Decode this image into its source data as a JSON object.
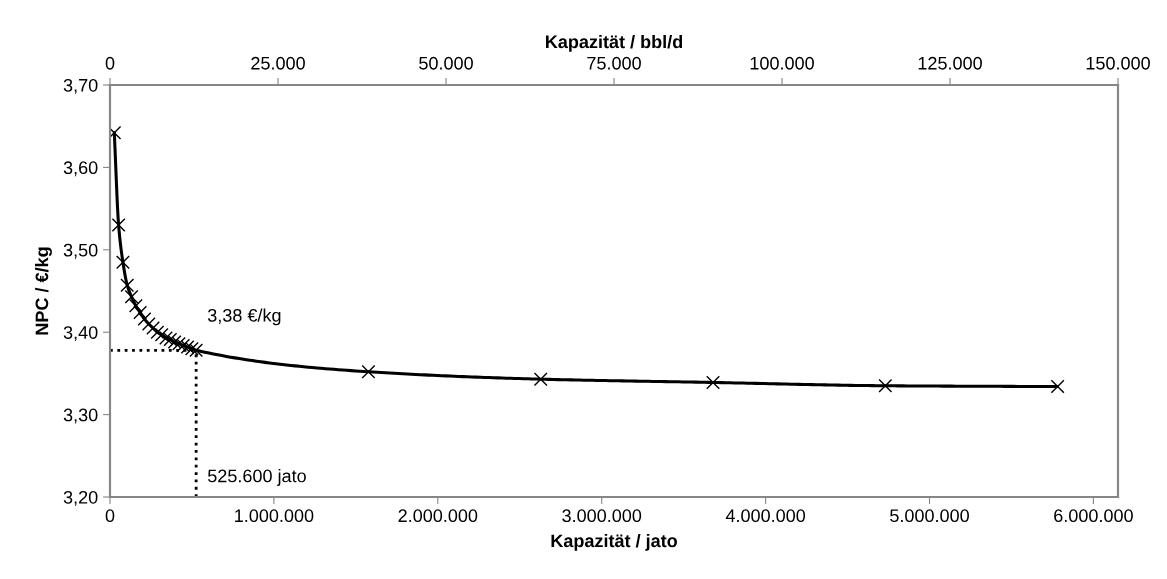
{
  "chart_data": {
    "type": "line",
    "xlabel": "Kapazität / jato",
    "ylabel": "NPC / €/kg",
    "x2label": "Kapazität / bbl/d",
    "x": [
      26280,
      52560,
      78840,
      105120,
      131400,
      157680,
      183960,
      210240,
      236520,
      262800,
      289080,
      315360,
      341640,
      367920,
      394200,
      420480,
      446760,
      473040,
      499320,
      525600,
      1576800,
      2628000,
      3679200,
      4730400,
      5781600
    ],
    "series": [
      {
        "color": "#000000",
        "values": [
          3.642,
          3.53,
          3.485,
          3.457,
          3.443,
          3.432,
          3.424,
          3.416,
          3.41,
          3.405,
          3.4,
          3.397,
          3.393,
          3.391,
          3.388,
          3.386,
          3.384,
          3.382,
          3.38,
          3.378,
          3.352,
          3.343,
          3.339,
          3.335,
          3.334
        ]
      }
    ],
    "marker": "cross",
    "line_style": "solid",
    "grid": false,
    "legend": false,
    "xlim": [
      0,
      6150000
    ],
    "xticks": [
      {
        "value": 0,
        "label": "0"
      },
      {
        "value": 1000000,
        "label": "1.000.000"
      },
      {
        "value": 2000000,
        "label": "2.000.000"
      },
      {
        "value": 3000000,
        "label": "3.000.000"
      },
      {
        "value": 4000000,
        "label": "4.000.000"
      },
      {
        "value": 5000000,
        "label": "5.000.000"
      },
      {
        "value": 6000000,
        "label": "6.000.000"
      }
    ],
    "x2lim": [
      0,
      150000
    ],
    "x2ticks": [
      {
        "value": 0,
        "label": "0"
      },
      {
        "value": 25000,
        "label": "25.000"
      },
      {
        "value": 50000,
        "label": "50.000"
      },
      {
        "value": 75000,
        "label": "75.000"
      },
      {
        "value": 100000,
        "label": "100.000"
      },
      {
        "value": 125000,
        "label": "125.000"
      },
      {
        "value": 150000,
        "label": "150.000"
      }
    ],
    "ylim": [
      3.2,
      3.7
    ],
    "yticks": [
      {
        "value": 3.2,
        "label": "3,20"
      },
      {
        "value": 3.3,
        "label": "3,30"
      },
      {
        "value": 3.4,
        "label": "3,40"
      },
      {
        "value": 3.5,
        "label": "3,50"
      },
      {
        "value": 3.6,
        "label": "3,60"
      },
      {
        "value": 3.7,
        "label": "3,70"
      }
    ],
    "ref_lines": [
      {
        "axis": "y",
        "value": 3.378,
        "label": "3,38 €/kg",
        "color": "#000000",
        "line_style": "dotted"
      },
      {
        "axis": "x",
        "value": 525600,
        "label": "525.600 jato",
        "color": "#000000",
        "line_style": "dotted"
      }
    ]
  }
}
